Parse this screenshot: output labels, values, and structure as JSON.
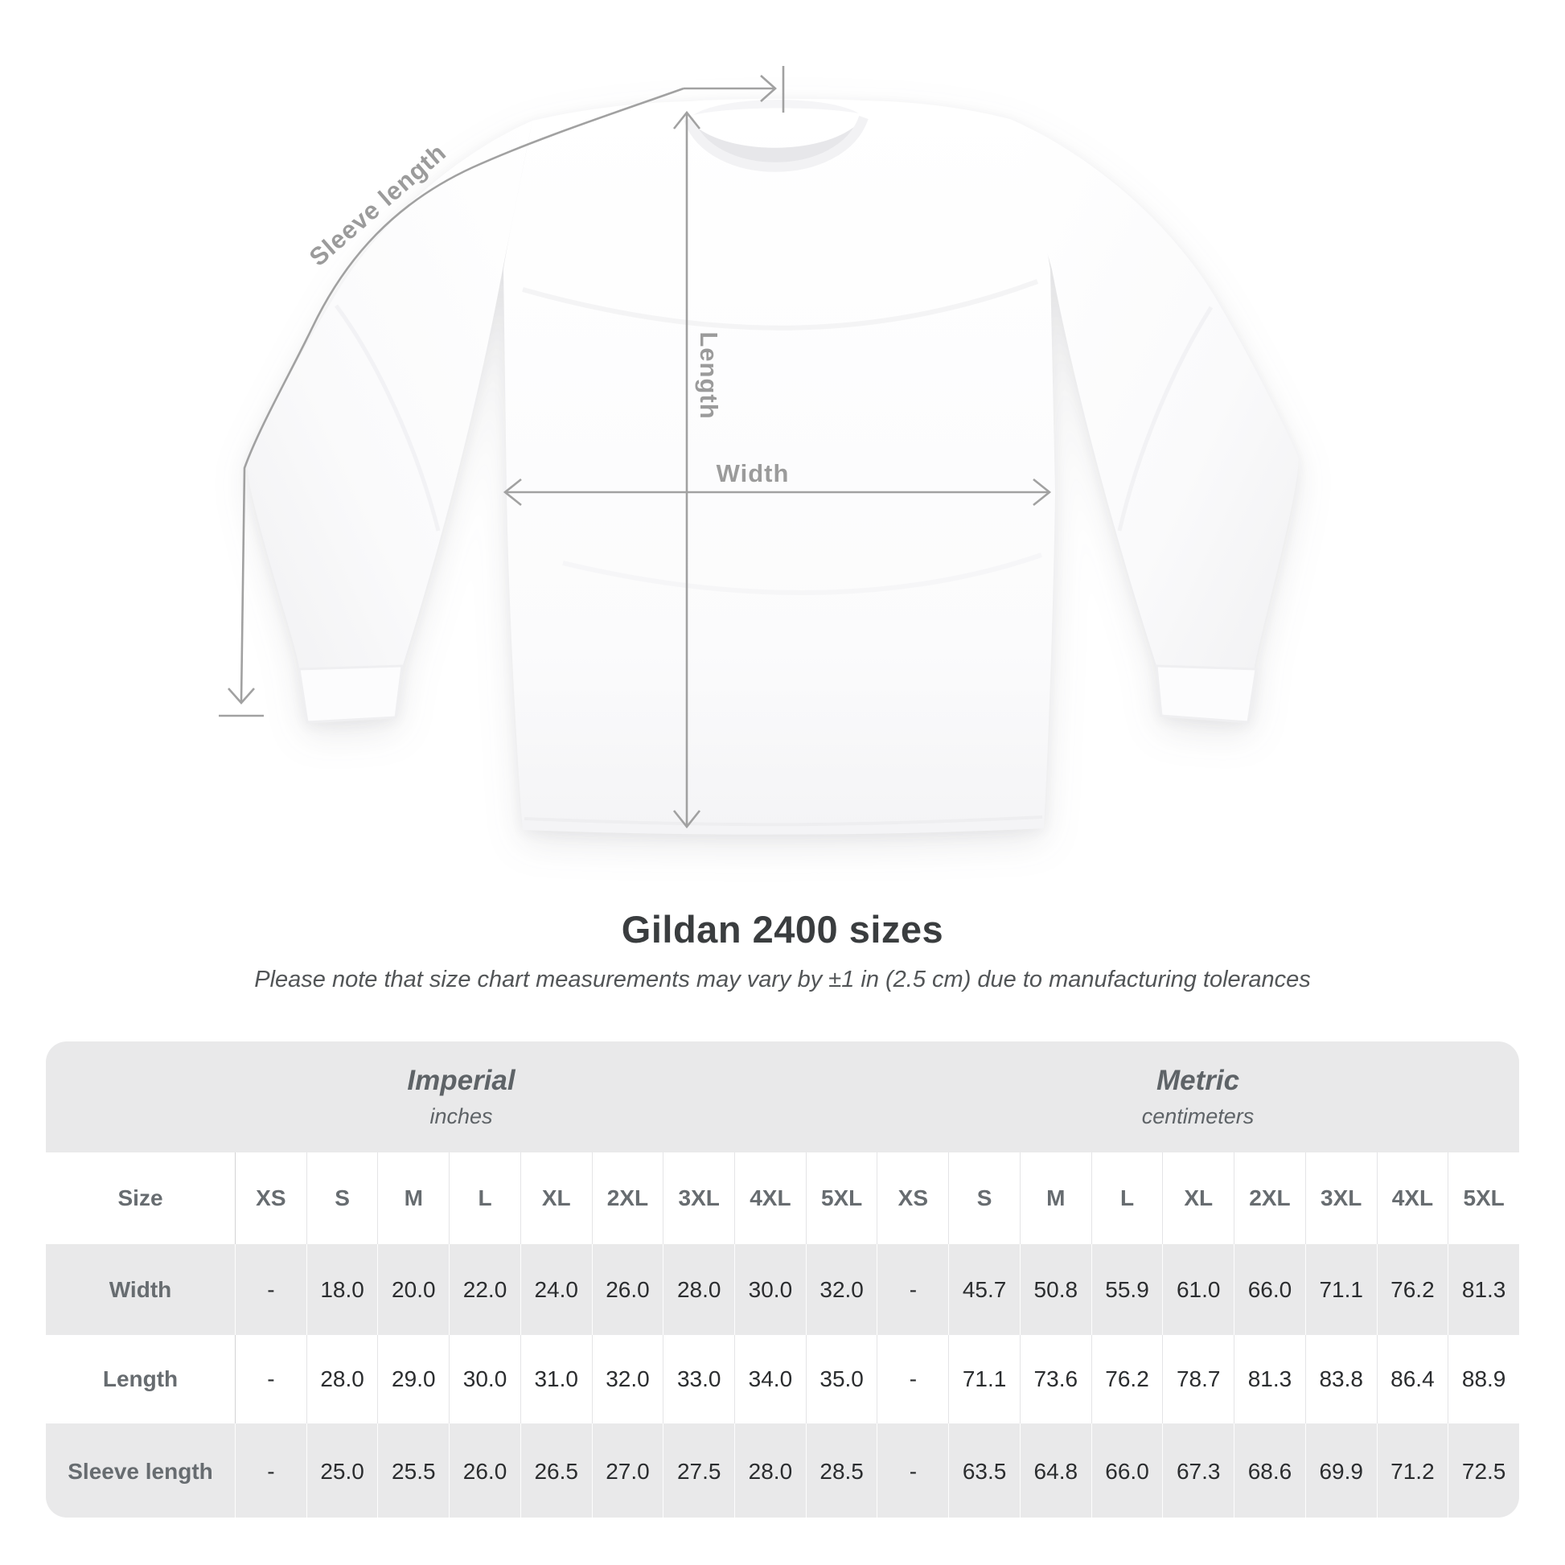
{
  "diagram": {
    "labels": {
      "sleeve_length": "Sleeve length",
      "length": "Length",
      "width": "Width"
    },
    "line_color": "#a1a1a1",
    "label_color": "#9b9b9b"
  },
  "heading": {
    "title": "Gildan 2400 sizes",
    "subtitle": "Please note that size chart measurements may vary by ±1 in (2.5 cm) due to manufacturing tolerances"
  },
  "size_table": {
    "corner_label": "Size",
    "sections": [
      {
        "label": "Imperial",
        "unit": "inches"
      },
      {
        "label": "Metric",
        "unit": "centimeters"
      }
    ],
    "sizes": [
      "XS",
      "S",
      "M",
      "L",
      "XL",
      "2XL",
      "3XL",
      "4XL",
      "5XL"
    ],
    "rows": [
      {
        "label": "Width",
        "imperial": [
          "-",
          "18.0",
          "20.0",
          "22.0",
          "24.0",
          "26.0",
          "28.0",
          "30.0",
          "32.0"
        ],
        "metric": [
          "-",
          "45.7",
          "50.8",
          "55.9",
          "61.0",
          "66.0",
          "71.1",
          "76.2",
          "81.3"
        ]
      },
      {
        "label": "Length",
        "imperial": [
          "-",
          "28.0",
          "29.0",
          "30.0",
          "31.0",
          "32.0",
          "33.0",
          "34.0",
          "35.0"
        ],
        "metric": [
          "-",
          "71.1",
          "73.6",
          "76.2",
          "78.7",
          "81.3",
          "83.8",
          "86.4",
          "88.9"
        ]
      },
      {
        "label": "Sleeve length",
        "imperial": [
          "-",
          "25.0",
          "25.5",
          "26.0",
          "26.5",
          "27.0",
          "27.5",
          "28.0",
          "28.5"
        ],
        "metric": [
          "-",
          "63.5",
          "64.8",
          "66.0",
          "67.3",
          "68.6",
          "69.9",
          "71.2",
          "72.5"
        ]
      }
    ]
  },
  "chart_data": {
    "type": "table",
    "title": "Gildan 2400 sizes",
    "columns": [
      "XS",
      "S",
      "M",
      "L",
      "XL",
      "2XL",
      "3XL",
      "4XL",
      "5XL"
    ],
    "units": [
      "inches",
      "centimeters"
    ],
    "rows": [
      {
        "label": "Width",
        "inches": [
          null,
          18.0,
          20.0,
          22.0,
          24.0,
          26.0,
          28.0,
          30.0,
          32.0
        ],
        "centimeters": [
          null,
          45.7,
          50.8,
          55.9,
          61.0,
          66.0,
          71.1,
          76.2,
          81.3
        ]
      },
      {
        "label": "Length",
        "inches": [
          null,
          28.0,
          29.0,
          30.0,
          31.0,
          32.0,
          33.0,
          34.0,
          35.0
        ],
        "centimeters": [
          null,
          71.1,
          73.6,
          76.2,
          78.7,
          81.3,
          83.8,
          86.4,
          88.9
        ]
      },
      {
        "label": "Sleeve length",
        "inches": [
          null,
          25.0,
          25.5,
          26.0,
          26.5,
          27.0,
          27.5,
          28.0,
          28.5
        ],
        "centimeters": [
          null,
          63.5,
          64.8,
          66.0,
          67.3,
          68.6,
          69.9,
          71.2,
          72.5
        ]
      }
    ]
  }
}
